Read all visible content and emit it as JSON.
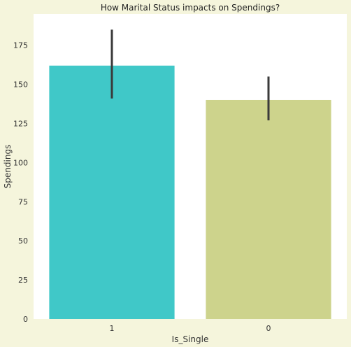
{
  "chart_data": {
    "type": "bar",
    "title": "How Marital Status impacts on Spendings?",
    "xlabel": "Is_Single",
    "ylabel": "Spendings",
    "categories": [
      "1",
      "0"
    ],
    "values": [
      162,
      140
    ],
    "error_bars": [
      [
        141,
        185
      ],
      [
        127,
        155
      ]
    ],
    "bar_colors": [
      "#40c8c8",
      "#cdd38c"
    ],
    "errorbar_color": "#3a3a3a",
    "ylim": [
      0,
      195
    ],
    "yticks": [
      0,
      25,
      50,
      75,
      100,
      125,
      150,
      175
    ],
    "grid": false,
    "legend": "none"
  },
  "colors": {
    "figure_background": "#f5f5dc",
    "plot_background": "#ffffff"
  }
}
